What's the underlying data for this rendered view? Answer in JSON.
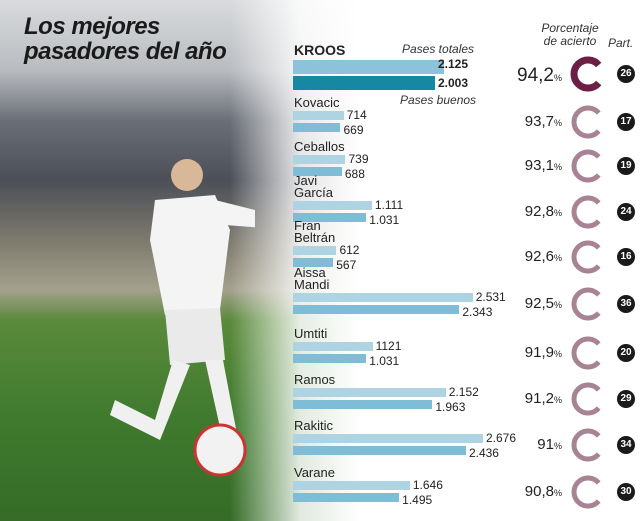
{
  "title": "Los mejores\npasadores del año",
  "headers": {
    "pases_totales": "Pases totales",
    "pases_buenos": "Pases buenos",
    "porcentaje": "Porcentaje\nde acierto",
    "partidos": "Part."
  },
  "colors": {
    "total_bar": "#aed3e3",
    "good_bar": "#7fbcd6",
    "top_total_bar": "#8cc3da",
    "top_good_bar": "#1788a4",
    "top_ring": "#6b1f45",
    "ring": "#a78394"
  },
  "chart_data": {
    "type": "bar",
    "categories": [
      "KROOS",
      "Kovacic",
      "Ceballos",
      "Javi\nGarcía",
      "Fran\nBeltrán",
      "Aissa\nMandi",
      "Umtiti",
      "Ramos",
      "Rakitic",
      "Varane"
    ],
    "series": [
      {
        "name": "Pases totales",
        "values": [
          2125,
          714,
          739,
          1111,
          612,
          2531,
          1121,
          2152,
          2676,
          1646
        ],
        "labels": [
          "2.125",
          "714",
          "739",
          "1.111",
          "612",
          "2.531",
          "1121",
          "2.152",
          "2.676",
          "1.646"
        ]
      },
      {
        "name": "Pases buenos",
        "values": [
          2003,
          669,
          688,
          1031,
          567,
          2343,
          1031,
          1963,
          2436,
          1495
        ],
        "labels": [
          "2.003",
          "669",
          "688",
          "1.031",
          "567",
          "2.343",
          "1.031",
          "1.963",
          "2.436",
          "1.495"
        ]
      }
    ],
    "porcentaje_acierto": [
      94.2,
      93.7,
      93.1,
      92.8,
      92.6,
      92.5,
      91.9,
      91.2,
      91,
      90.8
    ],
    "porcentaje_labels": [
      "94,2",
      "93,7",
      "93,1",
      "92,8",
      "92,6",
      "92,5",
      "91,9",
      "91,2",
      "91",
      "90,8"
    ],
    "partidos": [
      "26",
      "17",
      "19",
      "24",
      "16",
      "36",
      "20",
      "29",
      "34",
      "30"
    ]
  }
}
